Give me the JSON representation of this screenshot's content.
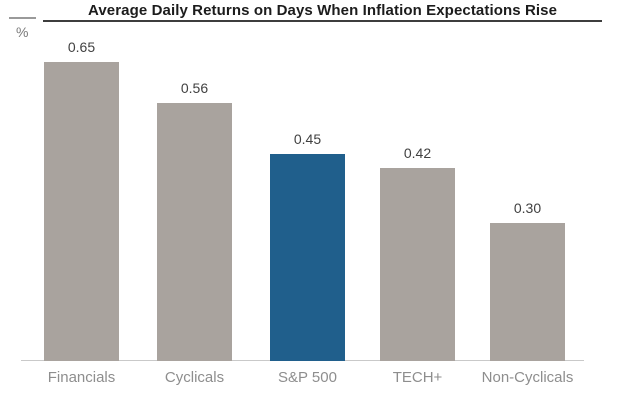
{
  "chart_data": {
    "type": "bar",
    "title": "Average Daily Returns on Days When Inflation Expectations Rise",
    "unit_label": "%",
    "categories": [
      "Financials",
      "Cyclicals",
      "S&P 500",
      "TECH+",
      "Non-Cyclicals"
    ],
    "values": [
      0.65,
      0.56,
      0.45,
      0.42,
      0.3
    ],
    "value_labels": [
      "0.65",
      "0.56",
      "0.45",
      "0.42",
      "0.30"
    ],
    "highlight_category": "S&P 500",
    "ylim": [
      0,
      0.65
    ],
    "grid": false,
    "legend": false,
    "colors": {
      "bar_default": "#a9a39e",
      "bar_highlight": "#205f8c",
      "axis_line": "#c9c9c9",
      "value_label": "#414141",
      "category_label": "#8e8e8e",
      "title": "#1c1c1c"
    }
  }
}
